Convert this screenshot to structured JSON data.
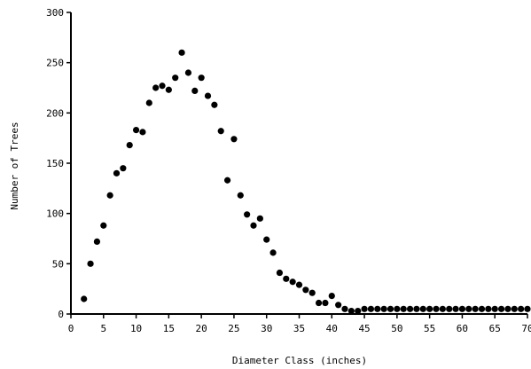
{
  "chart_data": {
    "type": "scatter",
    "title": "",
    "xlabel": "Diameter Class (inches)",
    "ylabel": "Number of Trees",
    "xlim": [
      0,
      70
    ],
    "ylim": [
      0,
      300
    ],
    "xticks": [
      0,
      5,
      10,
      15,
      20,
      25,
      30,
      35,
      40,
      45,
      50,
      55,
      60,
      65,
      70
    ],
    "yticks": [
      0,
      50,
      100,
      150,
      200,
      250,
      300
    ],
    "grid": false,
    "legend": "none",
    "marker_color": "#000000",
    "series": [
      {
        "x": [
          2,
          3,
          4,
          5,
          6,
          7,
          8,
          9,
          10,
          11,
          12,
          13,
          14,
          15,
          16,
          17,
          18,
          19,
          20,
          21,
          22,
          23,
          24,
          25,
          26,
          27,
          28,
          29,
          30,
          31,
          32,
          33,
          34,
          35,
          36,
          37,
          38,
          39,
          40,
          41,
          42,
          43,
          44,
          45,
          46,
          47,
          48,
          49,
          50,
          51,
          52,
          53,
          54,
          55,
          56,
          57,
          58,
          59,
          60,
          61,
          62,
          63,
          64,
          65,
          66,
          67,
          68,
          69,
          70
        ],
        "y": [
          15,
          50,
          72,
          88,
          118,
          140,
          145,
          168,
          183,
          181,
          210,
          225,
          227,
          223,
          235,
          260,
          240,
          222,
          235,
          217,
          208,
          182,
          133,
          174,
          118,
          99,
          88,
          95,
          74,
          61,
          41,
          35,
          32,
          29,
          24,
          21,
          11,
          11,
          18,
          9,
          5,
          3,
          3,
          5,
          5,
          5,
          5,
          5,
          5,
          5,
          5,
          5,
          5,
          5,
          5,
          5,
          5,
          5,
          5,
          5,
          5,
          5,
          5,
          5,
          5,
          5,
          5,
          5,
          5
        ]
      }
    ]
  }
}
